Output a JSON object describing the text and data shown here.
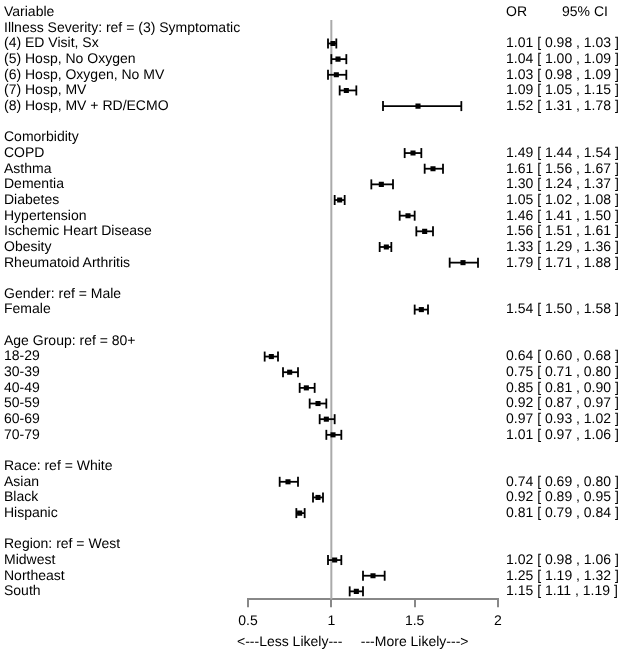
{
  "chart_data": {
    "type": "scatter",
    "orientation": "horizontal",
    "ylabel": "Variable",
    "marker": "square",
    "grid": false,
    "legend": false,
    "annotations": [
      "OR",
      "95% CI",
      "<---Less Likely---",
      "---More Likely--->"
    ],
    "categories": [
      "Illness Severity: ref = (3) Symptomatic",
      "(4) ED Visit, Sx",
      "(5) Hosp, No Oxygen",
      "(6) Hosp, Oxygen, No MV",
      "(7) Hosp, MV",
      "(8) Hosp, MV + RD/ECMO",
      null,
      "Comorbidity",
      "COPD",
      "Asthma",
      "Dementia",
      "Diabetes",
      "Hypertension",
      "Ischemic Heart Disease",
      "Obesity",
      "Rheumatoid Arthritis",
      null,
      "Gender: ref = Male",
      "Female",
      null,
      "Age Group: ref = 80+",
      "18-29",
      "30-39",
      "40-49",
      "50-59",
      "60-69",
      "70-79",
      null,
      "Race: ref = White",
      "Asian",
      "Black",
      "Hispanic",
      null,
      "Region: ref = West",
      "Midwest",
      "Northeast",
      "South"
    ],
    "color": "#000000",
    "values": [
      null,
      1.01,
      1.04,
      1.03,
      1.09,
      1.52,
      null,
      null,
      1.49,
      1.61,
      1.3,
      1.05,
      1.46,
      1.56,
      1.33,
      1.79,
      null,
      null,
      1.54,
      null,
      null,
      0.64,
      0.75,
      0.85,
      0.92,
      0.97,
      1.01,
      null,
      null,
      0.74,
      0.92,
      0.81,
      null,
      null,
      1.02,
      1.25,
      1.15
    ],
    "errors": [
      null,
      [
        0.98,
        1.03
      ],
      [
        1.0,
        1.09
      ],
      [
        0.98,
        1.09
      ],
      [
        1.05,
        1.15
      ],
      [
        1.31,
        1.78
      ],
      null,
      null,
      [
        1.44,
        1.54
      ],
      [
        1.56,
        1.67
      ],
      [
        1.24,
        1.37
      ],
      [
        1.02,
        1.08
      ],
      [
        1.41,
        1.5
      ],
      [
        1.51,
        1.61
      ],
      [
        1.29,
        1.36
      ],
      [
        1.71,
        1.88
      ],
      null,
      null,
      [
        1.5,
        1.58
      ],
      null,
      null,
      [
        0.6,
        0.68
      ],
      [
        0.71,
        0.8
      ],
      [
        0.81,
        0.9
      ],
      [
        0.87,
        0.97
      ],
      [
        0.93,
        1.02
      ],
      [
        0.97,
        1.06
      ],
      null,
      null,
      [
        0.69,
        0.8
      ],
      [
        0.89,
        0.95
      ],
      [
        0.79,
        0.84
      ],
      null,
      null,
      [
        0.98,
        1.06
      ],
      [
        1.19,
        1.32
      ],
      [
        1.11,
        1.19
      ]
    ],
    "value_labels": [
      null,
      "1.01 [ 0.98 , 1.03 ]",
      "1.04 [ 1.00 , 1.09 ]",
      "1.03 [ 0.98 , 1.09 ]",
      "1.09 [ 1.05 , 1.15 ]",
      "1.52 [ 1.31 , 1.78 ]",
      null,
      null,
      "1.49 [ 1.44 , 1.54 ]",
      "1.61 [ 1.56 , 1.67 ]",
      "1.30 [ 1.24 , 1.37 ]",
      "1.05 [ 1.02 , 1.08 ]",
      "1.46 [ 1.41 , 1.50 ]",
      "1.56 [ 1.51 , 1.61 ]",
      "1.33 [ 1.29 , 1.36 ]",
      "1.79 [ 1.71 , 1.88 ]",
      null,
      null,
      "1.54 [ 1.50 , 1.58 ]",
      null,
      null,
      "0.64 [ 0.60 , 0.68 ]",
      "0.75 [ 0.71 , 0.80 ]",
      "0.85 [ 0.81 , 0.90 ]",
      "0.92 [ 0.87 , 0.97 ]",
      "0.97 [ 0.93 , 1.02 ]",
      "1.01 [ 0.97 , 1.06 ]",
      null,
      null,
      "0.74 [ 0.69 , 0.80 ]",
      "0.92 [ 0.89 , 0.95 ]",
      "0.81 [ 0.79 , 0.84 ]",
      null,
      null,
      "1.02 [ 0.98 , 1.06 ]",
      "1.25 [ 1.19 , 1.32 ]",
      "1.15 [ 1.11 , 1.19 ]"
    ],
    "xlim": [
      0.5,
      2
    ],
    "xticks": [
      0.5,
      1,
      1.5,
      2
    ],
    "ref_lines": [
      {
        "axis": "x",
        "value": 1,
        "color": "#aaaaaa"
      }
    ]
  }
}
